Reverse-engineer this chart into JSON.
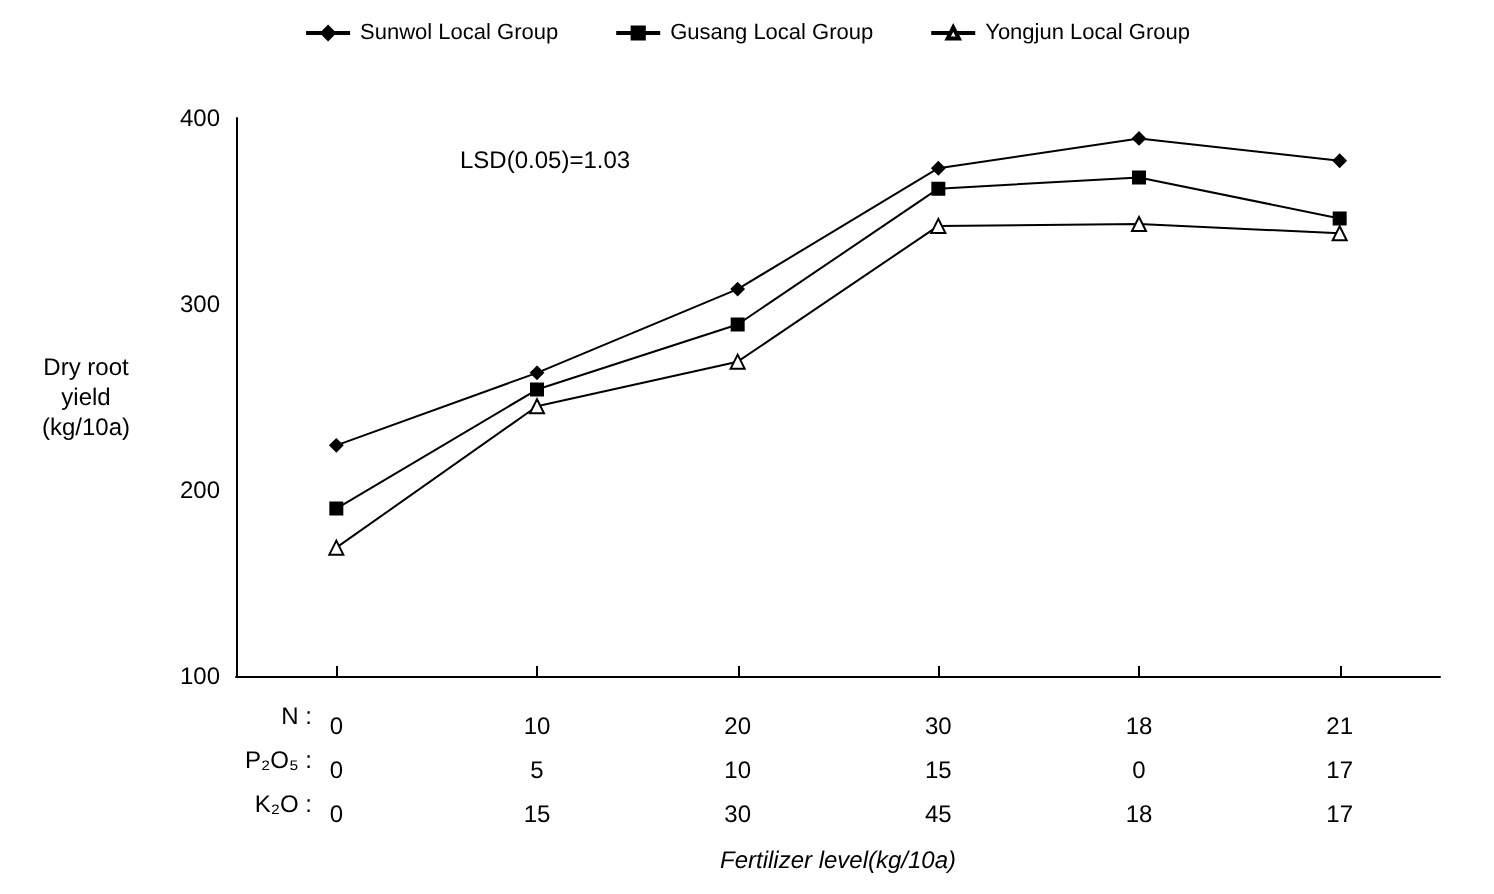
{
  "chart_data": {
    "type": "line",
    "xlabel": "Fertilizer level(kg/10a)",
    "ylabel": "Dry root\nyield\n(kg/10a)",
    "categories": [
      "0\n0\n0",
      "10\n5\n15",
      "20\n10\n30",
      "30\n15\n45",
      "18\n0\n18",
      "21\n17\n17"
    ],
    "series": [
      {
        "name": "Sunwol Local Group",
        "color": "#000000",
        "marker": "diamond",
        "values": [
          224,
          263,
          308,
          373,
          389,
          377
        ]
      },
      {
        "name": "Gusang Local Group",
        "color": "#000000",
        "marker": "square",
        "values": [
          190,
          254,
          289,
          362,
          368,
          346
        ]
      },
      {
        "name": "Yongjun Local Group",
        "color": "#000000",
        "marker": "triangle",
        "values": [
          169,
          245,
          269,
          342,
          343,
          338
        ]
      }
    ],
    "ylim": [
      100,
      400
    ],
    "yticks": [
      100,
      200,
      300,
      400
    ],
    "grid": false,
    "legend": "top",
    "line_style": "solid",
    "annotations": [
      "LSD(0.05)=1.03",
      "N :",
      "P₂O₅ :",
      "K₂O :"
    ]
  }
}
